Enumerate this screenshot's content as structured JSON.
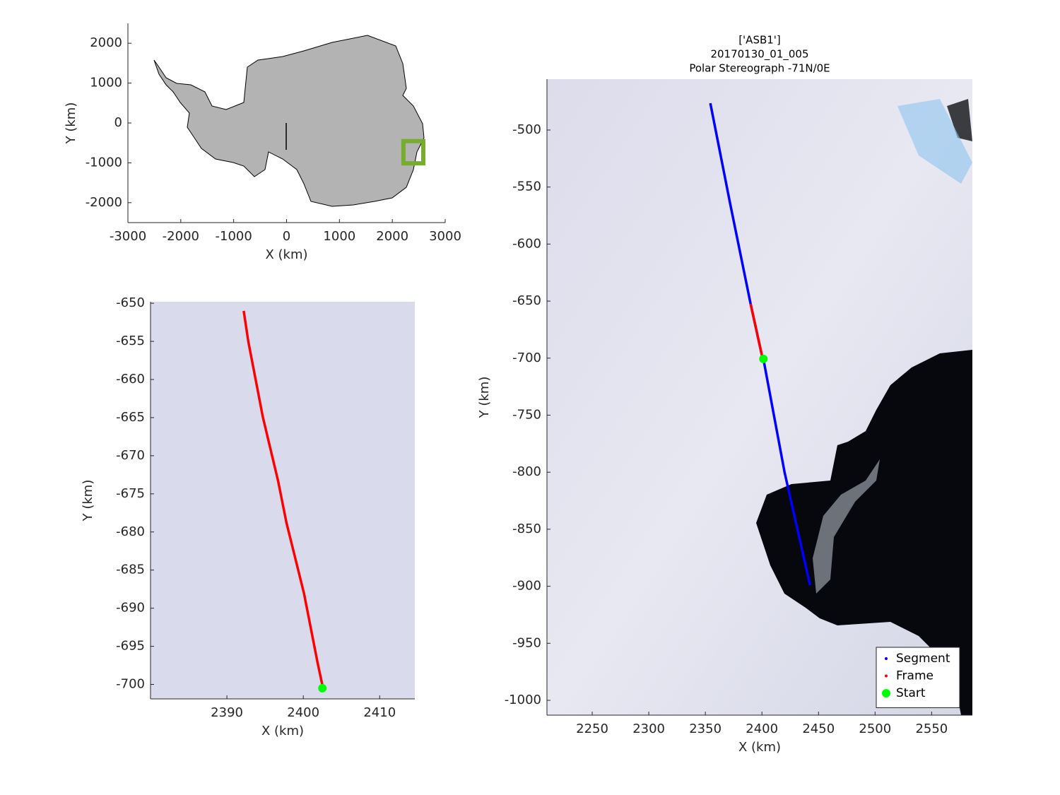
{
  "chart_data": [
    {
      "type": "map",
      "xlabel": "X (km)",
      "ylabel": "Y (km)",
      "xlim": [
        -3000,
        3000
      ],
      "ylim": [
        -2500,
        2500
      ],
      "xticks": [
        -3000,
        -2000,
        -1000,
        0,
        1000,
        2000,
        3000
      ],
      "yticks": [
        -2000,
        -1000,
        0,
        1000,
        2000
      ]
    },
    {
      "type": "line",
      "xlabel": "X (km)",
      "ylabel": "Y (km)",
      "xlim": [
        2380,
        2414.6
      ],
      "ylim": [
        -701.9,
        -649.8
      ],
      "xticks": [
        2390,
        2400,
        2410
      ],
      "yticks": [
        -700,
        -695,
        -690,
        -685,
        -680,
        -675,
        -670,
        -665,
        -660,
        -655,
        -650
      ],
      "series": [
        {
          "name": "Frame",
          "color": "#ff0000",
          "x": [
            2392.2,
            2392.8,
            2394.7,
            2396.7,
            2397.8,
            2400.1,
            2401.9,
            2402.5
          ],
          "values": [
            -651.0,
            -655.0,
            -664.9,
            -673.3,
            -678.8,
            -688.1,
            -697.3,
            -700.1
          ]
        },
        {
          "name": "Start",
          "color": "#00ff00",
          "x": [
            2402.5
          ],
          "values": [
            -700.5
          ]
        }
      ]
    },
    {
      "type": "line",
      "title": [
        "['ASB1']",
        "20170130_01_005",
        "Polar Stereograph -71N/0E"
      ],
      "xlabel": "X (km)",
      "ylabel": "Y (km)",
      "xlim": [
        2210,
        2586
      ],
      "ylim": [
        -1013,
        -455.4
      ],
      "xticks": [
        2250,
        2300,
        2350,
        2400,
        2450,
        2500,
        2550
      ],
      "yticks": [
        -1000,
        -950,
        -900,
        -850,
        -800,
        -750,
        -700,
        -650,
        -600,
        -550,
        -500
      ],
      "series": [
        {
          "name": "Segment",
          "color": "#0000ff",
          "x": [
            2354.4,
            2372,
            2390,
            2400,
            2401.3,
            2420,
            2442.5
          ],
          "values": [
            -476.5,
            -565,
            -652.4,
            -697.6,
            -700.7,
            -800,
            -899
          ]
        },
        {
          "name": "Frame",
          "color": "#ff0000",
          "x": [
            2390,
            2395,
            2400
          ],
          "values": [
            -652.4,
            -675,
            -697.6
          ]
        },
        {
          "name": "Start",
          "color": "#00ff00",
          "x": [
            2401.3
          ],
          "values": [
            -700.7
          ]
        }
      ]
    }
  ]
}
